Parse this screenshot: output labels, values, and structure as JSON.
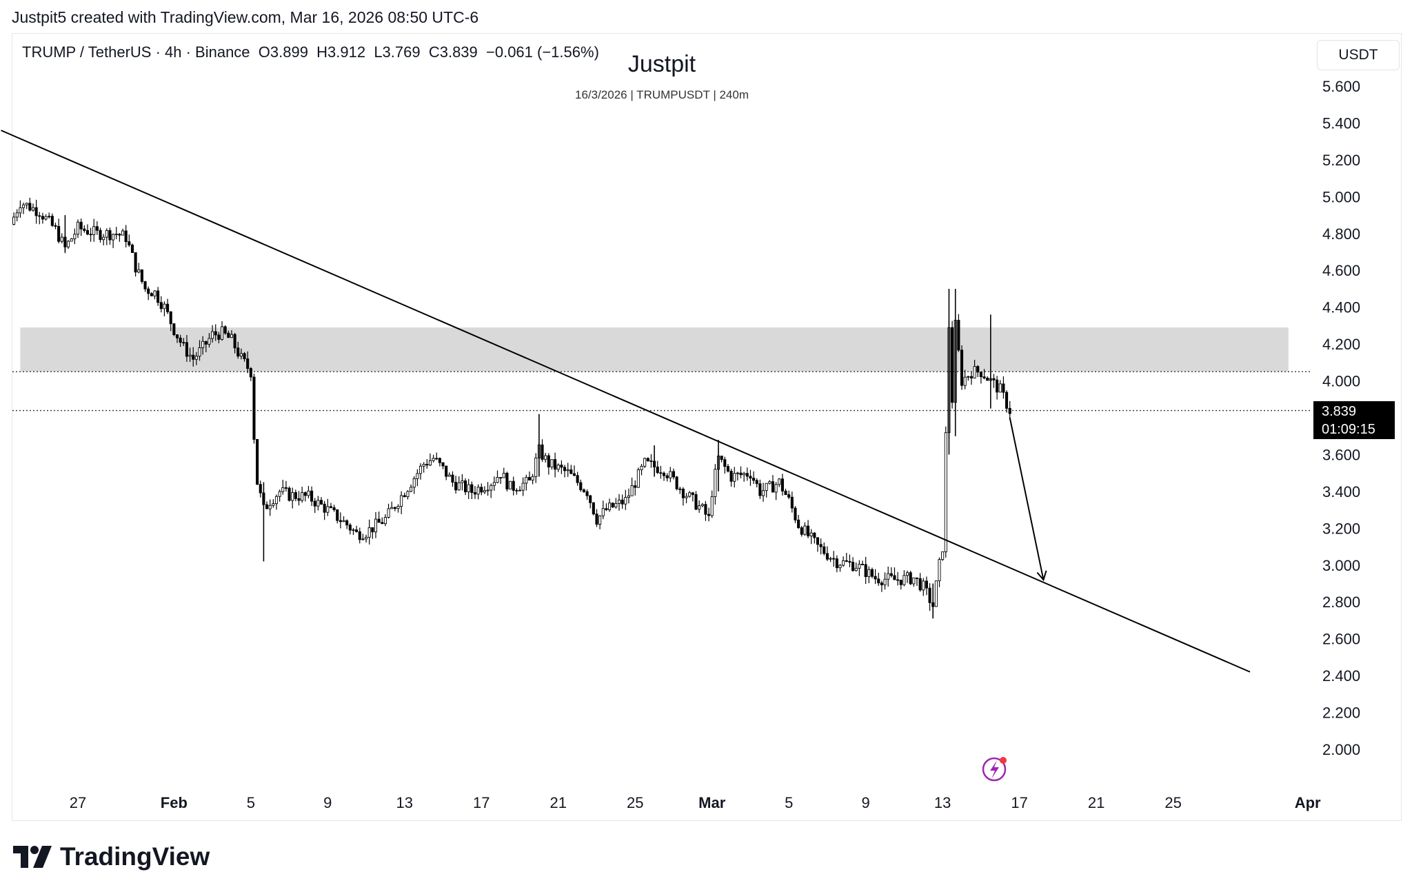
{
  "credit": "Justpit5 created with TradingView.com, Mar 16, 2026 08:50 UTC-6",
  "legend": "TRUMP / TetherUS · 4h · Binance  O3.899  H3.912  L3.769  C3.839  −0.061 (−1.56%)",
  "watermark": {
    "title": "Justpit",
    "subtitle": "16/3/2026 | TRUMPUSDT | 240m"
  },
  "currency": "USDT",
  "badge": {
    "price": "3.839",
    "countdown": "01:09:15"
  },
  "logo": {
    "text": "TradingView",
    "icon": "tradingview-logo-icon"
  },
  "flash_icon": "lightning-bolt-icon",
  "colors": {
    "candle": "#000000",
    "zone": "#d9d9d9",
    "line": "#000000",
    "badge_bg": "#000000",
    "flash": "#9c27b0",
    "flash_dot": "#f23645"
  },
  "chart_data": {
    "type": "candlestick",
    "symbol": "TRUMPUSDT",
    "interval": "4h",
    "ylim": [
      1.85,
      5.75
    ],
    "y_ticks": [
      "5.600",
      "5.400",
      "5.200",
      "5.000",
      "4.800",
      "4.600",
      "4.400",
      "4.200",
      "4.000",
      "3.600",
      "3.400",
      "3.200",
      "3.000",
      "2.800",
      "2.600",
      "2.400",
      "2.200",
      "2.000"
    ],
    "x_ticks": [
      {
        "label": "27",
        "date": "2026-01-27",
        "bold": false
      },
      {
        "label": "Feb",
        "date": "2026-02-01",
        "bold": true
      },
      {
        "label": "5",
        "date": "2026-02-05",
        "bold": false
      },
      {
        "label": "9",
        "date": "2026-02-09",
        "bold": false
      },
      {
        "label": "13",
        "date": "2026-02-13",
        "bold": false
      },
      {
        "label": "17",
        "date": "2026-02-17",
        "bold": false
      },
      {
        "label": "21",
        "date": "2026-02-21",
        "bold": false
      },
      {
        "label": "25",
        "date": "2026-02-25",
        "bold": false
      },
      {
        "label": "Mar",
        "date": "2026-03-01",
        "bold": true
      },
      {
        "label": "5",
        "date": "2026-03-05",
        "bold": false
      },
      {
        "label": "9",
        "date": "2026-03-09",
        "bold": false
      },
      {
        "label": "13",
        "date": "2026-03-13",
        "bold": false
      },
      {
        "label": "17",
        "date": "2026-03-17",
        "bold": false
      },
      {
        "label": "21",
        "date": "2026-03-21",
        "bold": false
      },
      {
        "label": "25",
        "date": "2026-03-25",
        "bold": false
      },
      {
        "label": "Apr",
        "date": "2026-04-01",
        "bold": true
      }
    ],
    "path": [
      [
        "2026-01-23T12:00",
        4.85
      ],
      [
        "2026-01-24T00:00",
        4.97
      ],
      [
        "2026-01-25T00:00",
        4.92
      ],
      [
        "2026-01-25T20:00",
        4.82
      ],
      [
        "2026-01-26T08:00",
        4.72
      ],
      [
        "2026-01-27T00:00",
        4.83
      ],
      [
        "2026-01-28T00:00",
        4.8
      ],
      [
        "2026-01-29T00:00",
        4.8
      ],
      [
        "2026-01-29T12:00",
        4.78
      ],
      [
        "2026-01-30T00:00",
        4.62
      ],
      [
        "2026-01-30T12:00",
        4.5
      ],
      [
        "2026-01-31T00:00",
        4.48
      ],
      [
        "2026-01-31T12:00",
        4.4
      ],
      [
        "2026-02-01T00:00",
        4.28
      ],
      [
        "2026-02-01T12:00",
        4.18
      ],
      [
        "2026-02-02T00:00",
        4.12
      ],
      [
        "2026-02-02T12:00",
        4.18
      ],
      [
        "2026-02-03T00:00",
        4.25
      ],
      [
        "2026-02-03T12:00",
        4.26
      ],
      [
        "2026-02-04T00:00",
        4.22
      ],
      [
        "2026-02-04T12:00",
        4.12
      ],
      [
        "2026-02-05T00:00",
        4.05
      ],
      [
        "2026-02-05T04:00",
        3.7
      ],
      [
        "2026-02-05T08:00",
        3.45
      ],
      [
        "2026-02-05T16:00",
        3.3
      ],
      [
        "2026-02-06T00:00",
        3.35
      ],
      [
        "2026-02-06T12:00",
        3.4
      ],
      [
        "2026-02-07T00:00",
        3.38
      ],
      [
        "2026-02-08T00:00",
        3.37
      ],
      [
        "2026-02-09T00:00",
        3.3
      ],
      [
        "2026-02-10T00:00",
        3.22
      ],
      [
        "2026-02-10T12:00",
        3.17
      ],
      [
        "2026-02-11T00:00",
        3.18
      ],
      [
        "2026-02-12T00:00",
        3.25
      ],
      [
        "2026-02-13T00:00",
        3.4
      ],
      [
        "2026-02-14T00:00",
        3.55
      ],
      [
        "2026-02-14T12:00",
        3.58
      ],
      [
        "2026-02-15T00:00",
        3.52
      ],
      [
        "2026-02-15T12:00",
        3.45
      ],
      [
        "2026-02-16T12:00",
        3.4
      ],
      [
        "2026-02-17T12:00",
        3.45
      ],
      [
        "2026-02-18T00:00",
        3.5
      ],
      [
        "2026-02-18T12:00",
        3.42
      ],
      [
        "2026-02-19T12:00",
        3.45
      ],
      [
        "2026-02-20T00:00",
        3.62
      ],
      [
        "2026-02-20T12:00",
        3.55
      ],
      [
        "2026-02-21T12:00",
        3.5
      ],
      [
        "2026-02-22T12:00",
        3.4
      ],
      [
        "2026-02-23T00:00",
        3.25
      ],
      [
        "2026-02-23T12:00",
        3.3
      ],
      [
        "2026-02-24T12:00",
        3.35
      ],
      [
        "2026-02-25T00:00",
        3.45
      ],
      [
        "2026-02-25T12:00",
        3.55
      ],
      [
        "2026-02-26T12:00",
        3.52
      ],
      [
        "2026-02-27T12:00",
        3.4
      ],
      [
        "2026-02-28T12:00",
        3.3
      ],
      [
        "2026-02-28T20:00",
        3.25
      ],
      [
        "2026-03-01T00:00",
        3.4
      ],
      [
        "2026-03-01T08:00",
        3.58
      ],
      [
        "2026-03-02T00:00",
        3.48
      ],
      [
        "2026-03-03T00:00",
        3.5
      ],
      [
        "2026-03-03T12:00",
        3.4
      ],
      [
        "2026-03-04T00:00",
        3.42
      ],
      [
        "2026-03-04T12:00",
        3.45
      ],
      [
        "2026-03-05T00:00",
        3.35
      ],
      [
        "2026-03-05T12:00",
        3.22
      ],
      [
        "2026-03-06T12:00",
        3.1
      ],
      [
        "2026-03-07T12:00",
        3.02
      ],
      [
        "2026-03-08T12:00",
        3.0
      ],
      [
        "2026-03-09T12:00",
        2.93
      ],
      [
        "2026-03-10T12:00",
        2.92
      ],
      [
        "2026-03-11T12:00",
        2.93
      ],
      [
        "2026-03-12T00:00",
        2.88
      ],
      [
        "2026-03-12T12:00",
        2.78
      ],
      [
        "2026-03-12T20:00",
        3.0
      ],
      [
        "2026-03-13T00:00",
        3.1
      ],
      [
        "2026-03-13T04:00",
        3.7
      ],
      [
        "2026-03-13T08:00",
        4.3
      ],
      [
        "2026-03-13T12:00",
        3.9
      ],
      [
        "2026-03-13T16:00",
        4.3
      ],
      [
        "2026-03-14T00:00",
        4.0
      ],
      [
        "2026-03-14T12:00",
        4.05
      ],
      [
        "2026-03-15T00:00",
        4.05
      ],
      [
        "2026-03-15T12:00",
        4.0
      ],
      [
        "2026-03-16T00:00",
        3.95
      ],
      [
        "2026-03-16T12:00",
        3.839
      ]
    ],
    "spikes": [
      [
        "2026-01-26T08:00",
        4.7,
        4.9
      ],
      [
        "2026-02-05T16:00",
        3.02,
        3.45
      ],
      [
        "2026-02-20T00:00",
        3.48,
        3.82
      ],
      [
        "2026-02-26T00:00",
        3.48,
        3.65
      ],
      [
        "2026-03-01T08:00",
        3.4,
        3.68
      ],
      [
        "2026-03-12T12:00",
        2.71,
        2.9
      ],
      [
        "2026-03-13T08:00",
        3.6,
        4.5
      ],
      [
        "2026-03-13T16:00",
        3.7,
        4.5
      ],
      [
        "2026-03-15T12:00",
        3.85,
        4.36
      ]
    ],
    "resistance_zone": {
      "from": "2026-01-24T00:00",
      "to": "2026-03-31T00:00",
      "low": 4.05,
      "high": 4.29
    },
    "dotted_lines": [
      4.05,
      3.839
    ],
    "trendline": {
      "start": [
        "2026-01-23T00:00",
        5.36
      ],
      "end": [
        "2026-03-29T00:00",
        2.42
      ]
    },
    "arrow": {
      "start": [
        "2026-03-16T12:00",
        3.8
      ],
      "end": [
        "2026-03-18T06:00",
        2.92
      ]
    }
  }
}
